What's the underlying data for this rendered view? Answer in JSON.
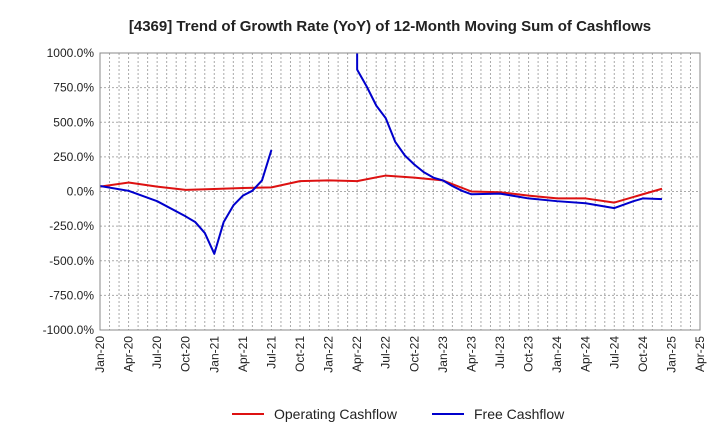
{
  "chart_data": {
    "type": "line",
    "title": "[4369]  Trend of Growth Rate (YoY) of 12-Month Moving Sum of Cashflows",
    "xlabel": "",
    "ylabel": "",
    "x_tick_labels": [
      "Jan-20",
      "Apr-20",
      "Jul-20",
      "Oct-20",
      "Jan-21",
      "Apr-21",
      "Jul-21",
      "Oct-21",
      "Jan-22",
      "Apr-22",
      "Jul-22",
      "Oct-22",
      "Jan-23",
      "Apr-23",
      "Jul-23",
      "Oct-23",
      "Jan-24",
      "Apr-24",
      "Jul-24",
      "Oct-24",
      "Jan-25",
      "Apr-25"
    ],
    "y_tick_labels": [
      "1000.0%",
      "750.0%",
      "500.0%",
      "250.0%",
      "0.0%",
      "-250.0%",
      "-500.0%",
      "-750.0%",
      "-1000.0%"
    ],
    "y_tick_values": [
      1000,
      750,
      500,
      250,
      0,
      -250,
      -500,
      -750,
      -1000
    ],
    "ylim": [
      -1000,
      1000
    ],
    "x_count": 22,
    "grid": true,
    "legend_position": "bottom",
    "series": [
      {
        "name": "Operating Cashflow",
        "color": "#dd1111",
        "points": [
          [
            0,
            35
          ],
          [
            1,
            65
          ],
          [
            2,
            35
          ],
          [
            3,
            12
          ],
          [
            4,
            18
          ],
          [
            5,
            25
          ],
          [
            6,
            30
          ],
          [
            7,
            75
          ],
          [
            8,
            80
          ],
          [
            9,
            75
          ],
          [
            10,
            115
          ],
          [
            11,
            100
          ],
          [
            12,
            80
          ],
          [
            13,
            0
          ],
          [
            14,
            -5
          ],
          [
            15,
            -30
          ],
          [
            16,
            -50
          ],
          [
            17,
            -50
          ],
          [
            18,
            -80
          ],
          [
            19,
            -20
          ],
          [
            19.67,
            20
          ]
        ]
      },
      {
        "name": "Free Cashflow",
        "color": "#0000cc",
        "segments": [
          [
            [
              0,
              40
            ],
            [
              1,
              5
            ],
            [
              2,
              -70
            ],
            [
              3,
              -180
            ],
            [
              3.33,
              -220
            ],
            [
              3.67,
              -300
            ],
            [
              4,
              -450
            ],
            [
              4.33,
              -220
            ],
            [
              4.67,
              -100
            ],
            [
              5,
              -30
            ],
            [
              5.33,
              5
            ],
            [
              5.67,
              80
            ],
            [
              6,
              300
            ]
          ],
          [
            [
              9,
              1000
            ],
            [
              9,
              880
            ],
            [
              9.33,
              760
            ],
            [
              9.67,
              620
            ],
            [
              10,
              530
            ],
            [
              10.33,
              360
            ],
            [
              10.67,
              260
            ],
            [
              11,
              195
            ],
            [
              11.33,
              140
            ],
            [
              11.67,
              100
            ],
            [
              12,
              80
            ],
            [
              12.33,
              40
            ],
            [
              12.67,
              5
            ],
            [
              13,
              -20
            ],
            [
              14,
              -15
            ],
            [
              15,
              -50
            ],
            [
              16,
              -70
            ],
            [
              17,
              -85
            ],
            [
              18,
              -120
            ],
            [
              18.33,
              -95
            ],
            [
              18.67,
              -70
            ],
            [
              19,
              -50
            ],
            [
              19.67,
              -55
            ]
          ]
        ]
      }
    ]
  }
}
